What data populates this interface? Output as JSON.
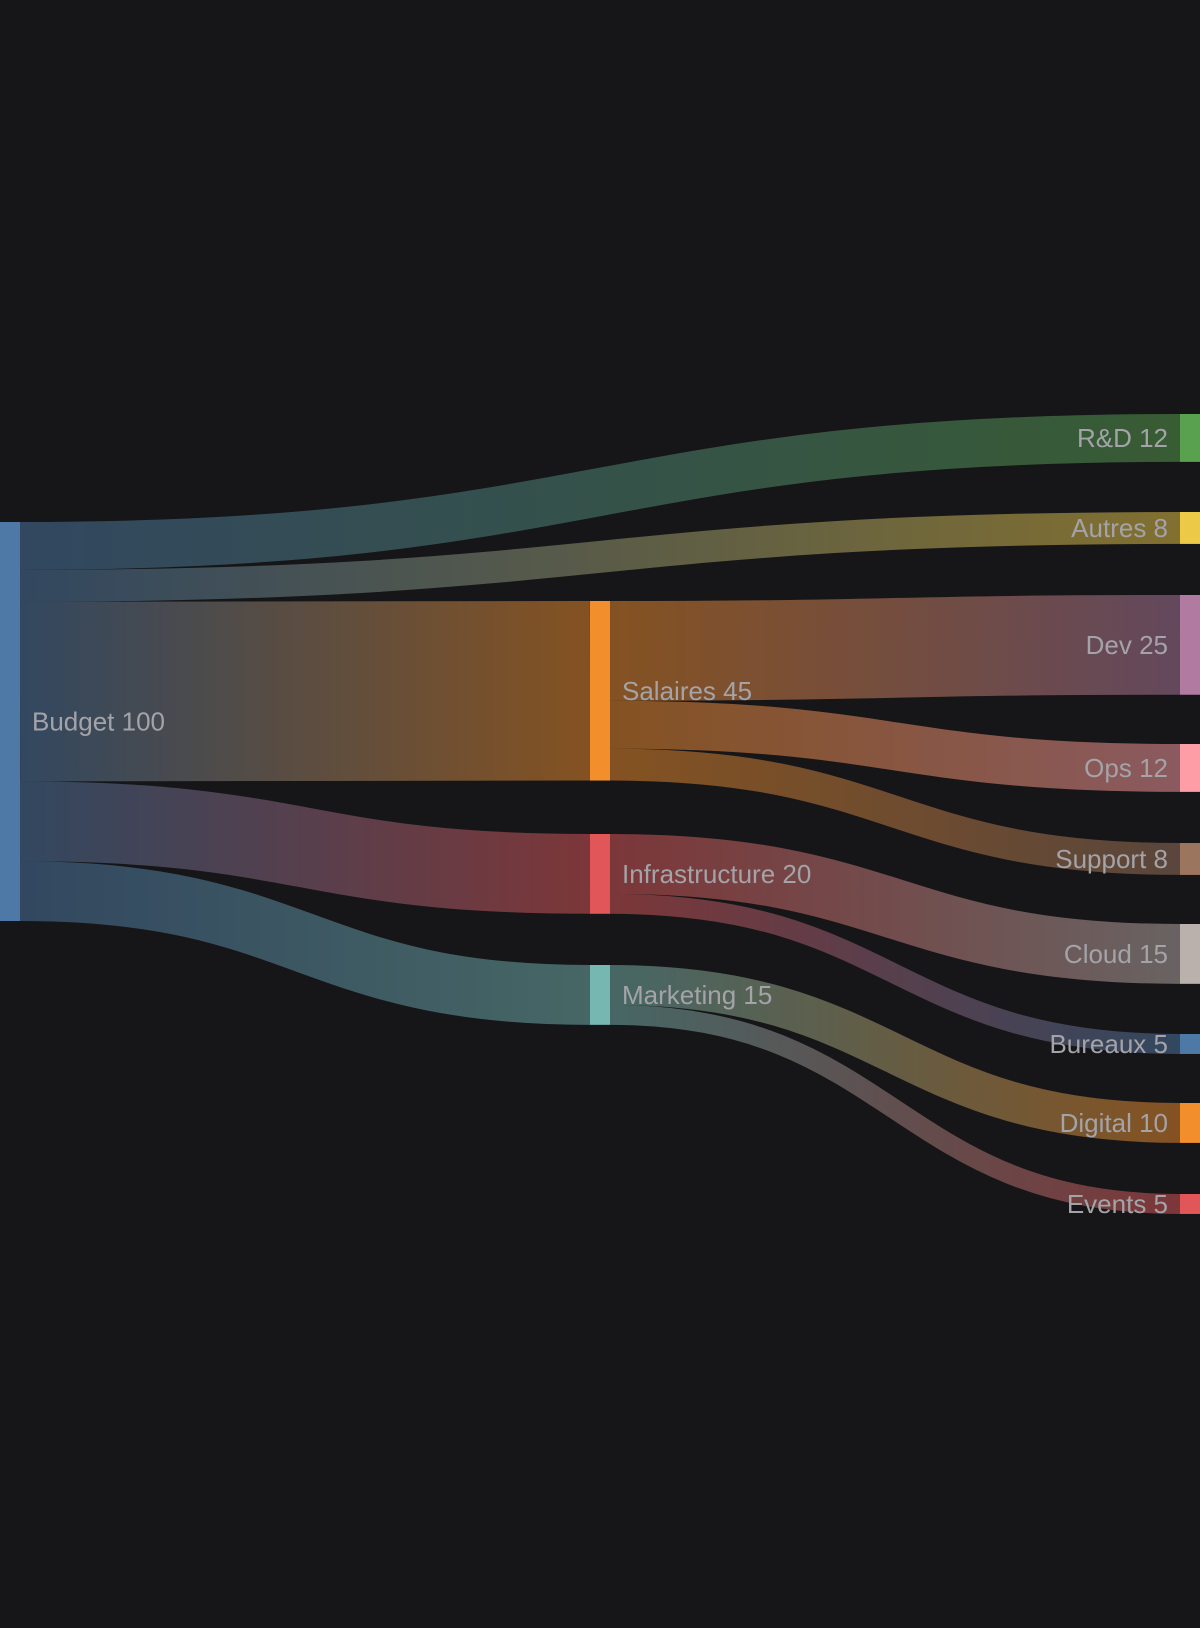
{
  "chart_data": {
    "type": "sankey",
    "background": "#161618",
    "nodes": [
      {
        "id": "budget",
        "name": "Budget",
        "value": 100,
        "label": "Budget 100",
        "color": "#4e79a7",
        "column": 0
      },
      {
        "id": "salaires",
        "name": "Salaires",
        "value": 45,
        "label": "Salaires 45",
        "color": "#f28e2b",
        "column": 1
      },
      {
        "id": "infra",
        "name": "Infrastructure",
        "value": 20,
        "label": "Infrastructure 20",
        "color": "#e15759",
        "column": 1
      },
      {
        "id": "marketing",
        "name": "Marketing",
        "value": 15,
        "label": "Marketing 15",
        "color": "#76b7b2",
        "column": 1
      },
      {
        "id": "rd",
        "name": "R&D",
        "value": 12,
        "label": "R&D 12",
        "color": "#59a14f",
        "column": 2
      },
      {
        "id": "autres",
        "name": "Autres",
        "value": 8,
        "label": "Autres 8",
        "color": "#edc948",
        "column": 2
      },
      {
        "id": "dev",
        "name": "Dev",
        "value": 25,
        "label": "Dev 25",
        "color": "#b07aa1",
        "column": 2
      },
      {
        "id": "ops",
        "name": "Ops",
        "value": 12,
        "label": "Ops 12",
        "color": "#ff9da7",
        "column": 2
      },
      {
        "id": "support",
        "name": "Support",
        "value": 8,
        "label": "Support 8",
        "color": "#9c755f",
        "column": 2
      },
      {
        "id": "cloud",
        "name": "Cloud",
        "value": 15,
        "label": "Cloud 15",
        "color": "#bab0ac",
        "column": 2
      },
      {
        "id": "bureaux",
        "name": "Bureaux",
        "value": 5,
        "label": "Bureaux 5",
        "color": "#4e79a7",
        "column": 2
      },
      {
        "id": "digital",
        "name": "Digital",
        "value": 10,
        "label": "Digital 10",
        "color": "#f28e2b",
        "column": 2
      },
      {
        "id": "events",
        "name": "Events",
        "value": 5,
        "label": "Events 5",
        "color": "#e15759",
        "column": 2
      }
    ],
    "links": [
      {
        "source": "budget",
        "target": "rd",
        "value": 12
      },
      {
        "source": "budget",
        "target": "autres",
        "value": 8
      },
      {
        "source": "budget",
        "target": "salaires",
        "value": 45
      },
      {
        "source": "budget",
        "target": "infra",
        "value": 20
      },
      {
        "source": "budget",
        "target": "marketing",
        "value": 15
      },
      {
        "source": "salaires",
        "target": "dev",
        "value": 25
      },
      {
        "source": "salaires",
        "target": "ops",
        "value": 12
      },
      {
        "source": "salaires",
        "target": "support",
        "value": 8
      },
      {
        "source": "infra",
        "target": "cloud",
        "value": 15
      },
      {
        "source": "infra",
        "target": "bureaux",
        "value": 5
      },
      {
        "source": "marketing",
        "target": "digital",
        "value": 10
      },
      {
        "source": "marketing",
        "target": "events",
        "value": 5
      }
    ]
  }
}
